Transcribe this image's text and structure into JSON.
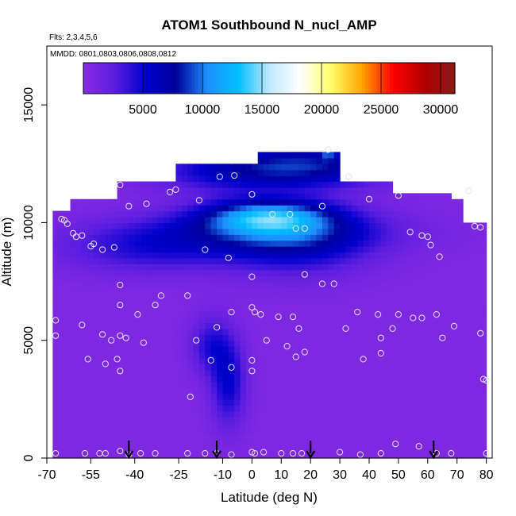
{
  "chart_data": {
    "type": "heatmap",
    "title": "ATOM1 Southbound N_nucl_AMP",
    "subtitle_flights": "Flts: 2,3,4,5,6",
    "subtitle_dates": "MMDD: 0801,0803,0806,0808,0812",
    "xlabel": "Latitude (deg N)",
    "ylabel": "Altitude (m)",
    "xlim": [
      -70,
      82
    ],
    "ylim": [
      0,
      17500
    ],
    "x_ticks": [
      -70,
      -55,
      -40,
      -25,
      -10,
      0,
      10,
      20,
      30,
      40,
      50,
      60,
      70,
      80
    ],
    "y_ticks": [
      0,
      5000,
      10000,
      15000
    ],
    "colorbar": {
      "range": [
        0,
        31200
      ],
      "ticks": [
        5000,
        10000,
        15000,
        20000,
        25000,
        30000
      ],
      "colors": [
        "#8a2be2",
        "#5c1ee0",
        "#0000cd",
        "#00009c",
        "#1e8fff",
        "#00bfff",
        "#bfe8ff",
        "#ffffff",
        "#ffff66",
        "#ffa500",
        "#ff0000",
        "#b20000",
        "#8b1a1a"
      ]
    },
    "heatmap": {
      "lat_bins": [
        -68,
        -66,
        -64,
        -62,
        -60,
        -58,
        -56,
        -54,
        -52,
        -50,
        -48,
        -46,
        -44,
        -42,
        -40,
        -38,
        -36,
        -34,
        -32,
        -30,
        -28,
        -26,
        -24,
        -22,
        -20,
        -18,
        -16,
        -14,
        -12,
        -10,
        -8,
        -6,
        -4,
        -2,
        0,
        2,
        4,
        6,
        8,
        10,
        12,
        14,
        16,
        18,
        20,
        22,
        24,
        26,
        28,
        30,
        32,
        34,
        36,
        38,
        40,
        42,
        44,
        46,
        48,
        50,
        52,
        54,
        56,
        58,
        60,
        62,
        64,
        66,
        68,
        70,
        72,
        74,
        76,
        78,
        80
      ],
      "background_value": 600,
      "top_altitude_by_lat": [
        {
          "lat_min": -68,
          "lat_max": -62,
          "alt_top": 10500
        },
        {
          "lat_min": -62,
          "lat_max": -46,
          "alt_top": 11000
        },
        {
          "lat_min": -46,
          "lat_max": -26,
          "alt_top": 11700
        },
        {
          "lat_min": -26,
          "lat_max": 2,
          "alt_top": 12400
        },
        {
          "lat_min": 2,
          "lat_max": 24,
          "alt_top": 12900
        },
        {
          "lat_min": 24,
          "lat_max": 30,
          "alt_top": 12900
        },
        {
          "lat_min": 30,
          "lat_max": 48,
          "alt_top": 11700
        },
        {
          "lat_min": 48,
          "lat_max": 68,
          "alt_top": 11200
        },
        {
          "lat_min": 68,
          "lat_max": 72,
          "alt_top": 10800
        },
        {
          "lat_min": 72,
          "lat_max": 80,
          "alt_top": 10000
        }
      ],
      "features": [
        {
          "lat": -5,
          "alt": 12200,
          "dlat": 30,
          "dalt": 900,
          "value": 4500
        },
        {
          "lat": 22,
          "alt": 12500,
          "dlat": 28,
          "dalt": 900,
          "value": 6000
        },
        {
          "lat": 5,
          "alt": 10300,
          "dlat": 22,
          "dalt": 700,
          "value": 9000
        },
        {
          "lat": 0,
          "alt": 9600,
          "dlat": 45,
          "dalt": 900,
          "value": 4500
        },
        {
          "lat": 15,
          "alt": 9200,
          "dlat": 25,
          "dalt": 1400,
          "value": 4800
        },
        {
          "lat": -35,
          "alt": 8800,
          "dlat": 30,
          "dalt": 1000,
          "value": 3000
        },
        {
          "lat": -8,
          "alt": 3200,
          "dlat": 6,
          "dalt": 1800,
          "value": 4500
        },
        {
          "lat": -14,
          "alt": 4800,
          "dlat": 7,
          "dalt": 1200,
          "value": 3500
        },
        {
          "lat": 26,
          "alt": 13050,
          "dlat": 1,
          "dalt": 300,
          "value": 11000
        }
      ]
    },
    "points": [
      {
        "lat": -65,
        "alt": 10150
      },
      {
        "lat": -64,
        "alt": 10100
      },
      {
        "lat": -63,
        "alt": 9950
      },
      {
        "lat": -61,
        "alt": 9550
      },
      {
        "lat": -60,
        "alt": 9400
      },
      {
        "lat": -58,
        "alt": 9450
      },
      {
        "lat": -55,
        "alt": 9000
      },
      {
        "lat": -54,
        "alt": 9100
      },
      {
        "lat": -51,
        "alt": 8850
      },
      {
        "lat": -47,
        "alt": 8950
      },
      {
        "lat": -45,
        "alt": 11600
      },
      {
        "lat": -42,
        "alt": 10700
      },
      {
        "lat": -36,
        "alt": 10800
      },
      {
        "lat": -28,
        "alt": 11300
      },
      {
        "lat": -26,
        "alt": 11400
      },
      {
        "lat": -18,
        "alt": 10950
      },
      {
        "lat": -16,
        "alt": 8850
      },
      {
        "lat": -11,
        "alt": 11950
      },
      {
        "lat": -6,
        "alt": 12000
      },
      {
        "lat": 0,
        "alt": 11200
      },
      {
        "lat": 7,
        "alt": 10350
      },
      {
        "lat": 13,
        "alt": 10350
      },
      {
        "lat": 15,
        "alt": 9750
      },
      {
        "lat": 18,
        "alt": 9750
      },
      {
        "lat": 24,
        "alt": 10700
      },
      {
        "lat": 33,
        "alt": 11950
      },
      {
        "lat": 40,
        "alt": 11000
      },
      {
        "lat": 50,
        "alt": 11150
      },
      {
        "lat": 54,
        "alt": 9600
      },
      {
        "lat": 58,
        "alt": 9450
      },
      {
        "lat": 60,
        "alt": 9400
      },
      {
        "lat": 61,
        "alt": 9050
      },
      {
        "lat": 64,
        "alt": 8550
      },
      {
        "lat": 74,
        "alt": 11350
      },
      {
        "lat": 76,
        "alt": 9850
      },
      {
        "lat": 78,
        "alt": 9800
      },
      {
        "lat": 26,
        "alt": 13100
      },
      {
        "lat": -8,
        "alt": 8500
      },
      {
        "lat": 0,
        "alt": 7700
      },
      {
        "lat": 18,
        "alt": 7800
      },
      {
        "lat": 28,
        "alt": 7400
      },
      {
        "lat": 24,
        "alt": 7400
      },
      {
        "lat": -45,
        "alt": 7350
      },
      {
        "lat": -45,
        "alt": 6500
      },
      {
        "lat": -39,
        "alt": 6100
      },
      {
        "lat": -33,
        "alt": 6500
      },
      {
        "lat": -31,
        "alt": 6900
      },
      {
        "lat": -22,
        "alt": 6900
      },
      {
        "lat": -7,
        "alt": 6200
      },
      {
        "lat": 0,
        "alt": 6400
      },
      {
        "lat": 1,
        "alt": 6200
      },
      {
        "lat": 3,
        "alt": 6100
      },
      {
        "lat": 9,
        "alt": 6000
      },
      {
        "lat": 14,
        "alt": 6000
      },
      {
        "lat": 36,
        "alt": 6200
      },
      {
        "lat": 43,
        "alt": 6100
      },
      {
        "lat": 50,
        "alt": 6100
      },
      {
        "lat": 55,
        "alt": 5950
      },
      {
        "lat": 58,
        "alt": 5950
      },
      {
        "lat": 63,
        "alt": 6100
      },
      {
        "lat": -67,
        "alt": 5850
      },
      {
        "lat": -67,
        "alt": 5200
      },
      {
        "lat": -58,
        "alt": 5650
      },
      {
        "lat": -51,
        "alt": 5250
      },
      {
        "lat": -48,
        "alt": 5000
      },
      {
        "lat": -45,
        "alt": 5200
      },
      {
        "lat": -43,
        "alt": 5100
      },
      {
        "lat": -37,
        "alt": 4900
      },
      {
        "lat": -19,
        "alt": 5000
      },
      {
        "lat": -12,
        "alt": 5550
      },
      {
        "lat": 5,
        "alt": 5000
      },
      {
        "lat": 12,
        "alt": 4750
      },
      {
        "lat": 16,
        "alt": 5500
      },
      {
        "lat": 32,
        "alt": 5500
      },
      {
        "lat": 44,
        "alt": 5100
      },
      {
        "lat": 48,
        "alt": 5500
      },
      {
        "lat": 69,
        "alt": 5600
      },
      {
        "lat": 65,
        "alt": 5100
      },
      {
        "lat": 78,
        "alt": 5300
      },
      {
        "lat": -56,
        "alt": 4200
      },
      {
        "lat": -50,
        "alt": 4000
      },
      {
        "lat": -46,
        "alt": 4200
      },
      {
        "lat": -45,
        "alt": 3700
      },
      {
        "lat": -14,
        "alt": 4150
      },
      {
        "lat": -7,
        "alt": 3850
      },
      {
        "lat": 0,
        "alt": 4150
      },
      {
        "lat": 0,
        "alt": 3700
      },
      {
        "lat": 15,
        "alt": 4300
      },
      {
        "lat": 18,
        "alt": 4500
      },
      {
        "lat": 38,
        "alt": 4200
      },
      {
        "lat": 44,
        "alt": 4450
      },
      {
        "lat": 79,
        "alt": 3350
      },
      {
        "lat": 80,
        "alt": 3300
      },
      {
        "lat": -21,
        "alt": 2600
      },
      {
        "lat": -67,
        "alt": 200
      },
      {
        "lat": -57,
        "alt": 200
      },
      {
        "lat": -52,
        "alt": 200
      },
      {
        "lat": -50,
        "alt": 200
      },
      {
        "lat": -45,
        "alt": 300
      },
      {
        "lat": -42,
        "alt": 150
      },
      {
        "lat": -38,
        "alt": 200
      },
      {
        "lat": -33,
        "alt": 200
      },
      {
        "lat": -22,
        "alt": 200
      },
      {
        "lat": -16,
        "alt": 200
      },
      {
        "lat": -12,
        "alt": 200
      },
      {
        "lat": -7,
        "alt": 150
      },
      {
        "lat": 0,
        "alt": 250
      },
      {
        "lat": 1,
        "alt": 200
      },
      {
        "lat": 4,
        "alt": 250
      },
      {
        "lat": 10,
        "alt": 200
      },
      {
        "lat": 14,
        "alt": 200
      },
      {
        "lat": 17,
        "alt": 200
      },
      {
        "lat": 30,
        "alt": 250
      },
      {
        "lat": 37,
        "alt": 150
      },
      {
        "lat": 44,
        "alt": 200
      },
      {
        "lat": 49,
        "alt": 600
      },
      {
        "lat": 57,
        "alt": 500
      },
      {
        "lat": 63,
        "alt": 200
      },
      {
        "lat": 68,
        "alt": 200
      },
      {
        "lat": 80,
        "alt": 200
      }
    ],
    "arrows_lat": [
      -42,
      -12,
      20,
      62
    ]
  }
}
